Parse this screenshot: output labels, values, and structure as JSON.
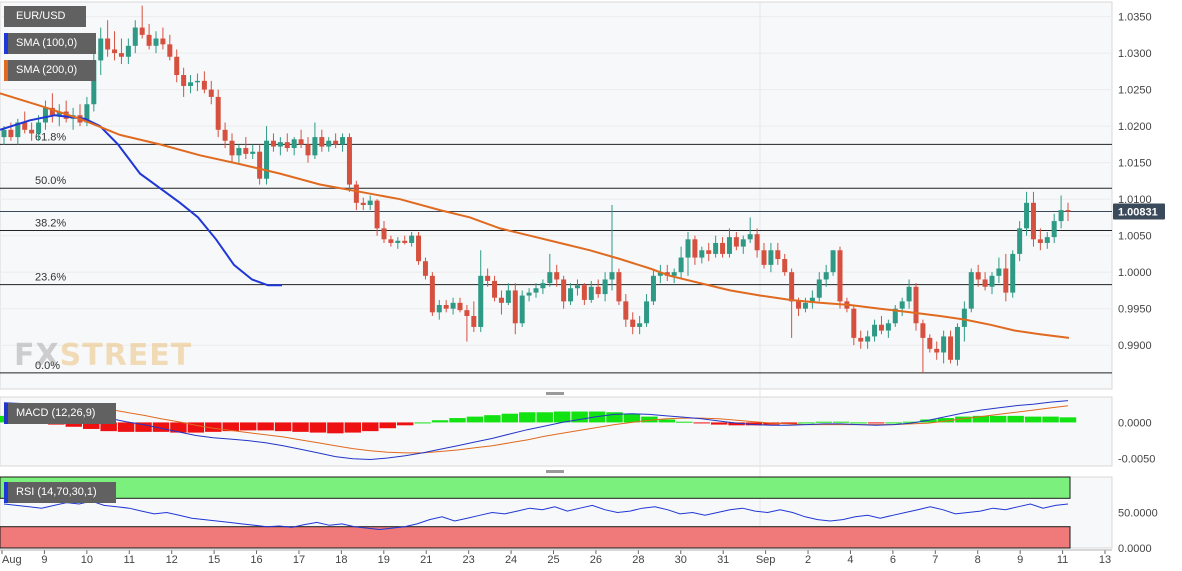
{
  "colors": {
    "bull": "#2e9a85",
    "bear": "#d6503f",
    "sma100": "#1f37d6",
    "sma200": "#e06a1f",
    "macd_line": "#2136c8",
    "signal_line": "#e06a1f",
    "hist_pos": "#12e212",
    "hist_neg": "#ee1111",
    "rsi_line": "#1f37d6",
    "rsi_over": "#7cf07c",
    "rsi_under": "#f07a7a",
    "price_tag": "#3b4a5a"
  },
  "legend": {
    "symbol": "EUR/USD",
    "sma100": "SMA (100,0)",
    "sma200": "SMA (200,0)",
    "macd": "MACD (12,26,9)",
    "rsi": "RSI (14,70,30,1)"
  },
  "watermark": {
    "part1": "FX",
    "part2": "STREET"
  },
  "last_price": "1.00831",
  "chart_data": {
    "type": "candlestick",
    "title": "EUR/USD",
    "price_axis": {
      "range": [
        0.984,
        1.037
      ],
      "ticks": [
        "1.0350",
        "1.0300",
        "1.0250",
        "1.0200",
        "1.0150",
        "1.0100",
        "1.0050",
        "1.0000",
        "0.9950",
        "0.9900"
      ]
    },
    "x_ticks": [
      "Aug",
      "9",
      "10",
      "11",
      "12",
      "15",
      "16",
      "17",
      "18",
      "19",
      "21",
      "23",
      "24",
      "25",
      "26",
      "28",
      "30",
      "31",
      "Sep",
      "2",
      "4",
      "6",
      "7",
      "8",
      "9",
      "11",
      "13"
    ],
    "fibonacci": [
      {
        "label": "61.8%",
        "value": 1.0175
      },
      {
        "label": "50.0%",
        "value": 1.0115
      },
      {
        "label": "38.2%",
        "value": 1.0057
      },
      {
        "label": "23.6%",
        "value": 0.9983
      },
      {
        "label": "0.0%",
        "value": 0.9862
      }
    ],
    "price_line": 1.00831,
    "macd_axis": {
      "range": [
        -0.006,
        0.0035
      ],
      "ticks": [
        "0.0000",
        "-0.0050"
      ]
    },
    "rsi_axis": {
      "range": [
        0,
        100
      ],
      "ticks": [
        "50.0000",
        "0.0000"
      ],
      "overbought": 70,
      "oversold": 30
    },
    "candles": [
      [
        1.0185,
        1.02,
        1.0175,
        1.0195
      ],
      [
        1.0195,
        1.0205,
        1.018,
        1.0185
      ],
      [
        1.0185,
        1.021,
        1.0175,
        1.0205
      ],
      [
        1.0205,
        1.022,
        1.019,
        1.0195
      ],
      [
        1.0195,
        1.0205,
        1.018,
        1.019
      ],
      [
        1.019,
        1.0215,
        1.018,
        1.0205
      ],
      [
        1.0205,
        1.0235,
        1.0195,
        1.0225
      ],
      [
        1.0225,
        1.0245,
        1.0205,
        1.0215
      ],
      [
        1.0215,
        1.023,
        1.02,
        1.022
      ],
      [
        1.022,
        1.0235,
        1.0205,
        1.021
      ],
      [
        1.021,
        1.0225,
        1.0195,
        1.0215
      ],
      [
        1.0215,
        1.023,
        1.02,
        1.0205
      ],
      [
        1.0205,
        1.024,
        1.02,
        1.023
      ],
      [
        1.023,
        1.03,
        1.022,
        1.029
      ],
      [
        1.029,
        1.0335,
        1.027,
        1.032
      ],
      [
        1.032,
        1.0345,
        1.0295,
        1.0305
      ],
      [
        1.0305,
        1.033,
        1.029,
        1.03
      ],
      [
        1.03,
        1.032,
        1.0285,
        1.0295
      ],
      [
        1.0295,
        1.032,
        1.0285,
        1.031
      ],
      [
        1.031,
        1.0345,
        1.03,
        1.0335
      ],
      [
        1.0335,
        1.0365,
        1.032,
        1.0325
      ],
      [
        1.0325,
        1.034,
        1.0305,
        1.031
      ],
      [
        1.031,
        1.033,
        1.03,
        1.032
      ],
      [
        1.032,
        1.0335,
        1.0305,
        1.0312
      ],
      [
        1.0312,
        1.0325,
        1.029,
        1.0295
      ],
      [
        1.0295,
        1.0305,
        1.026,
        1.027
      ],
      [
        1.027,
        1.028,
        1.024,
        1.0255
      ],
      [
        1.0255,
        1.027,
        1.0245,
        1.026
      ],
      [
        1.026,
        1.0272,
        1.0248,
        1.0262
      ],
      [
        1.0262,
        1.0275,
        1.0245,
        1.025
      ],
      [
        1.025,
        1.0262,
        1.023,
        1.024
      ],
      [
        1.024,
        1.025,
        1.0185,
        1.0195
      ],
      [
        1.0195,
        1.0205,
        1.017,
        1.018
      ],
      [
        1.018,
        1.019,
        1.015,
        1.016
      ],
      [
        1.016,
        1.0175,
        1.015,
        1.017
      ],
      [
        1.017,
        1.0185,
        1.0155,
        1.0162
      ],
      [
        1.0162,
        1.0175,
        1.0155,
        1.0165
      ],
      [
        1.0165,
        1.0175,
        1.012,
        1.0128
      ],
      [
        1.0128,
        1.02,
        1.012,
        1.018
      ],
      [
        1.018,
        1.019,
        1.0165,
        1.0172
      ],
      [
        1.0172,
        1.0185,
        1.016,
        1.0178
      ],
      [
        1.0178,
        1.019,
        1.0165,
        1.017
      ],
      [
        1.017,
        1.0185,
        1.016,
        1.0182
      ],
      [
        1.0182,
        1.0195,
        1.017,
        1.0175
      ],
      [
        1.0175,
        1.0185,
        1.015,
        1.016
      ],
      [
        1.016,
        1.0205,
        1.0155,
        1.0185
      ],
      [
        1.0185,
        1.0195,
        1.0165,
        1.0172
      ],
      [
        1.0172,
        1.0185,
        1.0165,
        1.018
      ],
      [
        1.018,
        1.019,
        1.017,
        1.0175
      ],
      [
        1.0175,
        1.019,
        1.0165,
        1.0185
      ],
      [
        1.0185,
        1.019,
        1.011,
        1.012
      ],
      [
        1.012,
        1.0125,
        1.0085,
        1.0095
      ],
      [
        1.0095,
        1.0102,
        1.0085,
        1.0092
      ],
      [
        1.0092,
        1.0105,
        1.0085,
        1.0098
      ],
      [
        1.0098,
        1.01,
        1.005,
        1.006
      ],
      [
        1.006,
        1.007,
        1.004,
        1.0045
      ],
      [
        1.0045,
        1.005,
        1.0035,
        1.004
      ],
      [
        1.004,
        1.0048,
        1.0032,
        1.0043
      ],
      [
        1.0043,
        1.005,
        1.0038,
        1.004
      ],
      [
        1.004,
        1.0055,
        1.0035,
        1.005
      ],
      [
        1.005,
        1.0055,
        1.001,
        1.0015
      ],
      [
        1.0015,
        1.002,
        0.999,
        0.9995
      ],
      [
        0.9995,
        1.0,
        0.994,
        0.9945
      ],
      [
        0.9945,
        0.9962,
        0.9935,
        0.9955
      ],
      [
        0.9955,
        0.9962,
        0.9945,
        0.995
      ],
      [
        0.995,
        0.9965,
        0.9942,
        0.9958
      ],
      [
        0.9958,
        0.9965,
        0.9945,
        0.9948
      ],
      [
        0.9948,
        0.9955,
        0.9905,
        0.994
      ],
      [
        0.994,
        0.996,
        0.9918,
        0.9925
      ],
      [
        0.9925,
        1.003,
        0.9918,
        0.9995
      ],
      [
        0.9995,
        1.0005,
        0.998,
        0.9988
      ],
      [
        0.9988,
        0.9995,
        0.996,
        0.9965
      ],
      [
        0.9965,
        0.9975,
        0.9942,
        0.9958
      ],
      [
        0.9958,
        0.9985,
        0.9955,
        0.9975
      ],
      [
        0.9975,
        0.9985,
        0.9915,
        0.993
      ],
      [
        0.993,
        0.9975,
        0.9925,
        0.9968
      ],
      [
        0.9968,
        0.9978,
        0.996,
        0.9972
      ],
      [
        0.9972,
        0.9985,
        0.9965,
        0.9978
      ],
      [
        0.9978,
        0.999,
        0.997,
        0.9985
      ],
      [
        0.9985,
        1.0025,
        0.998,
        1.0
      ],
      [
        1.0,
        1.001,
        0.998,
        0.999
      ],
      [
        0.999,
        0.9995,
        0.995,
        0.996
      ],
      [
        0.996,
        0.9985,
        0.9955,
        0.9978
      ],
      [
        0.9978,
        0.999,
        0.9968,
        0.9982
      ],
      [
        0.9982,
        0.9985,
        0.9955,
        0.9962
      ],
      [
        0.9962,
        0.9988,
        0.9958,
        0.998
      ],
      [
        0.998,
        0.999,
        0.9965,
        0.997
      ],
      [
        0.997,
        1.0,
        0.996,
        0.999
      ],
      [
        0.999,
        1.0092,
        0.9975,
        1.0
      ],
      [
        1.0,
        1.0005,
        0.9955,
        0.996
      ],
      [
        0.996,
        0.997,
        0.9925,
        0.9935
      ],
      [
        0.9935,
        0.9945,
        0.9915,
        0.9925
      ],
      [
        0.9925,
        0.994,
        0.9915,
        0.993
      ],
      [
        0.993,
        0.997,
        0.9925,
        0.996
      ],
      [
        0.996,
        1.0005,
        0.9955,
        0.9995
      ],
      [
        0.9995,
        1.001,
        0.9985,
        1.0
      ],
      [
        1.0,
        1.001,
        0.9988,
        0.9995
      ],
      [
        0.9995,
        1.0005,
        0.9985,
        1.0
      ],
      [
        1.0,
        1.0035,
        0.999,
        1.002
      ],
      [
        1.002,
        1.0055,
        0.9995,
        1.0045
      ],
      [
        1.0045,
        1.005,
        1.001,
        1.002
      ],
      [
        1.002,
        1.0035,
        1.0012,
        1.003
      ],
      [
        1.003,
        1.004,
        1.0015,
        1.0025
      ],
      [
        1.0025,
        1.005,
        1.002,
        1.004
      ],
      [
        1.004,
        1.0048,
        1.002,
        1.0025
      ],
      [
        1.0025,
        1.006,
        1.002,
        1.0048
      ],
      [
        1.0048,
        1.0055,
        1.003,
        1.0035
      ],
      [
        1.0035,
        1.005,
        1.0025,
        1.0045
      ],
      [
        1.0045,
        1.0075,
        1.004,
        1.0052
      ],
      [
        1.0052,
        1.006,
        1.002,
        1.003
      ],
      [
        1.003,
        1.004,
        1.0005,
        1.001
      ],
      [
        1.001,
        1.004,
        1.0,
        1.003
      ],
      [
        1.003,
        1.004,
        1.001,
        1.0018
      ],
      [
        1.0018,
        1.0025,
        0.9995,
        1.0
      ],
      [
        1.0,
        1.0005,
        0.991,
        0.996
      ],
      [
        0.996,
        0.9965,
        0.994,
        0.995
      ],
      [
        0.995,
        0.9965,
        0.9945,
        0.9958
      ],
      [
        0.9958,
        0.9975,
        0.995,
        0.9965
      ],
      [
        0.9965,
        1.0,
        0.996,
        0.999
      ],
      [
        0.999,
        1.001,
        0.998,
        1.0
      ],
      [
        1.0,
        1.003,
        0.9995,
        1.003
      ],
      [
        1.003,
        1.0035,
        0.995,
        0.996
      ],
      [
        0.996,
        0.9965,
        0.9945,
        0.995
      ],
      [
        0.995,
        0.9955,
        0.99,
        0.991
      ],
      [
        0.991,
        0.992,
        0.9895,
        0.9905
      ],
      [
        0.9905,
        0.992,
        0.9895,
        0.9912
      ],
      [
        0.9912,
        0.9935,
        0.9905,
        0.9928
      ],
      [
        0.9928,
        0.994,
        0.9915,
        0.992
      ],
      [
        0.992,
        0.9935,
        0.991,
        0.993
      ],
      [
        0.993,
        0.9955,
        0.9925,
        0.995
      ],
      [
        0.995,
        0.9965,
        0.994,
        0.996
      ],
      [
        0.996,
        0.999,
        0.995,
        0.998
      ],
      [
        0.998,
        0.9985,
        0.992,
        0.993
      ],
      [
        0.993,
        0.9935,
        0.9862,
        0.991
      ],
      [
        0.991,
        0.9915,
        0.989,
        0.9895
      ],
      [
        0.9895,
        0.9905,
        0.988,
        0.989
      ],
      [
        0.989,
        0.992,
        0.9875,
        0.9912
      ],
      [
        0.9912,
        0.992,
        0.9875,
        0.988
      ],
      [
        0.988,
        0.993,
        0.9872,
        0.9925
      ],
      [
        0.9925,
        0.996,
        0.9905,
        0.995
      ],
      [
        0.995,
        1.0005,
        0.9945,
        1.0
      ],
      [
        1.0,
        1.001,
        0.998,
        0.999
      ],
      [
        0.999,
        1.0,
        0.9975,
        0.998
      ],
      [
        0.998,
        1.0,
        0.997,
        0.9995
      ],
      [
        0.9995,
        1.002,
        0.9985,
        1.0005
      ],
      [
        1.0005,
        1.0025,
        0.996,
        0.9972
      ],
      [
        0.9972,
        1.003,
        0.9965,
        1.0025
      ],
      [
        1.0025,
        1.007,
        1.0015,
        1.006
      ],
      [
        1.006,
        1.011,
        1.005,
        1.0095
      ],
      [
        1.0095,
        1.011,
        1.0035,
        1.0045
      ],
      [
        1.0045,
        1.006,
        1.003,
        1.004
      ],
      [
        1.004,
        1.0055,
        1.0032,
        1.0048
      ],
      [
        1.0048,
        1.008,
        1.004,
        1.007
      ],
      [
        1.007,
        1.0105,
        1.006,
        1.0085
      ],
      [
        1.0085,
        1.0095,
        1.007,
        1.0083
      ]
    ],
    "sma100": [
      [
        0,
        1.0195
      ],
      [
        30,
        1.0208
      ],
      [
        55,
        1.0215
      ],
      [
        85,
        1.021
      ],
      [
        100,
        1.02
      ],
      [
        118,
        1.0175
      ],
      [
        140,
        1.0135
      ],
      [
        160,
        1.0115
      ],
      [
        180,
        1.0095
      ],
      [
        198,
        1.0075
      ],
      [
        216,
        1.0045
      ],
      [
        234,
        1.001
      ],
      [
        252,
        0.999
      ],
      [
        268,
        0.9982
      ],
      [
        282,
        0.9982
      ]
    ],
    "sma200": [
      [
        0,
        1.0245
      ],
      [
        40,
        1.0228
      ],
      [
        80,
        1.021
      ],
      [
        120,
        1.0188
      ],
      [
        160,
        1.0175
      ],
      [
        200,
        1.016
      ],
      [
        240,
        1.0148
      ],
      [
        280,
        1.0135
      ],
      [
        320,
        1.012
      ],
      [
        360,
        1.011
      ],
      [
        400,
        1.01
      ],
      [
        440,
        1.0085
      ],
      [
        470,
        1.0075
      ],
      [
        500,
        1.006
      ],
      [
        530,
        1.005
      ],
      [
        560,
        1.004
      ],
      [
        590,
        1.003
      ],
      [
        620,
        1.0018
      ],
      [
        650,
        1.0005
      ],
      [
        670,
        0.9995
      ],
      [
        700,
        0.9985
      ],
      [
        730,
        0.9975
      ],
      [
        760,
        0.9968
      ],
      [
        790,
        0.9962
      ],
      [
        820,
        0.9958
      ],
      [
        850,
        0.9955
      ],
      [
        880,
        0.995
      ],
      [
        910,
        0.9945
      ],
      [
        940,
        0.994
      ],
      [
        965,
        0.9935
      ],
      [
        990,
        0.9928
      ],
      [
        1015,
        0.992
      ],
      [
        1040,
        0.9915
      ],
      [
        1069,
        0.991
      ]
    ],
    "macd": [
      0.0027,
      0.0026,
      0.0024,
      0.0021,
      0.0017,
      0.0012,
      0.0006,
      0.0001,
      -0.0003,
      -0.0008,
      -0.0013,
      -0.0018,
      -0.0021,
      -0.0023,
      -0.0025,
      -0.0028,
      -0.0032,
      -0.0037,
      -0.0042,
      -0.0047,
      -0.005,
      -0.0051,
      -0.0049,
      -0.0046,
      -0.0042,
      -0.0037,
      -0.0032,
      -0.0027,
      -0.0022,
      -0.0016,
      -0.001,
      -0.0005,
      0.0,
      0.0004,
      0.0008,
      0.0011,
      0.0012,
      0.0011,
      0.0009,
      0.0007,
      0.0005,
      0.0002,
      -0.0001,
      -0.0003,
      -0.0004,
      -0.0004,
      -0.0003,
      -0.0002,
      -0.0002,
      -0.0003,
      -0.0004,
      -0.0003,
      -0.0001,
      0.0003,
      0.0008,
      0.0013,
      0.0017,
      0.002,
      0.0023,
      0.0025,
      0.0028,
      0.003
    ],
    "signal": [
      0.0018,
      0.0021,
      0.0023,
      0.0024,
      0.0023,
      0.0021,
      0.0018,
      0.0014,
      0.001,
      0.0005,
      0.0001,
      -0.0004,
      -0.0008,
      -0.0011,
      -0.0014,
      -0.0017,
      -0.002,
      -0.0024,
      -0.0028,
      -0.0032,
      -0.0036,
      -0.0039,
      -0.0041,
      -0.0042,
      -0.0042,
      -0.004,
      -0.0038,
      -0.0035,
      -0.0032,
      -0.0028,
      -0.0024,
      -0.0019,
      -0.0015,
      -0.0011,
      -0.0007,
      -0.0003,
      0.0,
      0.0003,
      0.0005,
      0.0006,
      0.0006,
      0.0005,
      0.0003,
      0.0001,
      -0.0001,
      -0.0002,
      -0.0003,
      -0.0003,
      -0.0003,
      -0.0003,
      -0.0003,
      -0.0003,
      -0.0002,
      -0.0001,
      0.0002,
      0.0005,
      0.0008,
      0.0011,
      0.0014,
      0.0017,
      0.002,
      0.0023
    ],
    "rsi": [
      62,
      60,
      58,
      56,
      60,
      64,
      62,
      66,
      60,
      58,
      56,
      52,
      48,
      50,
      46,
      42,
      40,
      38,
      36,
      34,
      32,
      30,
      31,
      29,
      33,
      36,
      32,
      34,
      30,
      28,
      26,
      28,
      30,
      34,
      40,
      44,
      38,
      42,
      46,
      50,
      48,
      52,
      56,
      54,
      58,
      52,
      56,
      60,
      54,
      50,
      52,
      56,
      58,
      54,
      48,
      50,
      46,
      50,
      54,
      56,
      52,
      50,
      54,
      50,
      44,
      40,
      38,
      40,
      44,
      46,
      42,
      46,
      50,
      54,
      58,
      54,
      48,
      50,
      52,
      56,
      54,
      58,
      62,
      56,
      60,
      62
    ]
  }
}
